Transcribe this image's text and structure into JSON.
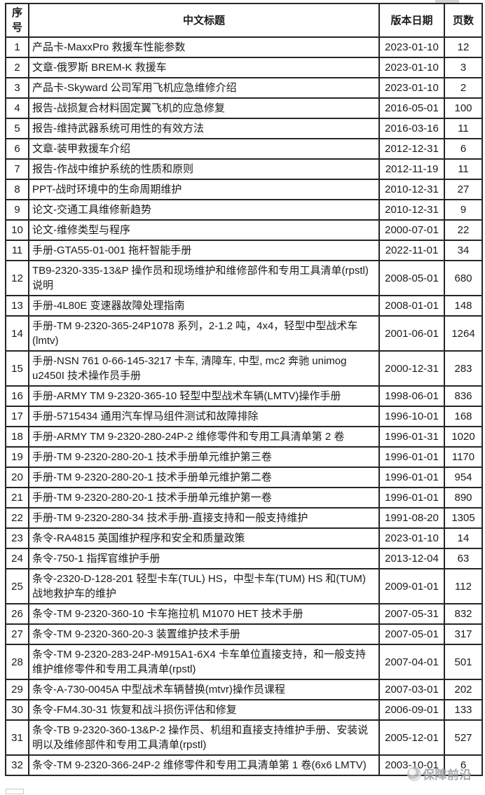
{
  "table": {
    "columns": [
      {
        "key": "seq",
        "label": "序号"
      },
      {
        "key": "title",
        "label": "中文标题"
      },
      {
        "key": "date",
        "label": "版本日期"
      },
      {
        "key": "pages",
        "label": "页数"
      }
    ],
    "rows": [
      {
        "seq": "1",
        "title": "产品卡-MaxxPro 救援车性能参数",
        "date": "2023-01-10",
        "pages": "12"
      },
      {
        "seq": "2",
        "title": "文章-俄罗斯 BREM-K 救援车",
        "date": "2023-01-10",
        "pages": "3"
      },
      {
        "seq": "3",
        "title": "产品卡-Skyward 公司军用飞机应急维修介绍",
        "date": "2023-01-10",
        "pages": "2"
      },
      {
        "seq": "4",
        "title": "报告-战损复合材料固定翼飞机的应急修复",
        "date": "2016-05-01",
        "pages": "100"
      },
      {
        "seq": "5",
        "title": "报告-维持武器系统可用性的有效方法",
        "date": "2016-03-16",
        "pages": "11"
      },
      {
        "seq": "6",
        "title": "文章-装甲救援车介绍",
        "date": "2012-12-31",
        "pages": "6"
      },
      {
        "seq": "7",
        "title": "报告-作战中维护系统的性质和原则",
        "date": "2012-11-19",
        "pages": "11"
      },
      {
        "seq": "8",
        "title": "PPT-战时环境中的生命周期维护",
        "date": "2010-12-31",
        "pages": "27"
      },
      {
        "seq": "9",
        "title": "论文-交通工具维修新趋势",
        "date": "2010-12-31",
        "pages": "9"
      },
      {
        "seq": "10",
        "title": "论文-维修类型与程序",
        "date": "2000-07-01",
        "pages": "22"
      },
      {
        "seq": "11",
        "title": "手册-GTA55-01-001 拖杆智能手册",
        "date": "2022-11-01",
        "pages": "34"
      },
      {
        "seq": "12",
        "title": "TB9-2320-335-13&P 操作员和现场维护和维修部件和专用工具清单(rpstl)说明",
        "date": "2008-05-01",
        "pages": "680"
      },
      {
        "seq": "13",
        "title": "手册-4L80E 变速器故障处理指南",
        "date": "2008-01-01",
        "pages": "148"
      },
      {
        "seq": "14",
        "title": "手册-TM 9-2320-365-24P1078 系列，2-1.2 吨，4x4，轻型中型战术车(lmtv)",
        "date": "2001-06-01",
        "pages": "1264"
      },
      {
        "seq": "15",
        "title": "手册-NSN 761 0-66-145-3217 卡车, 清障车, 中型, mc2 奔驰 unimog u2450I 技术操作员手册",
        "date": "2000-12-31",
        "pages": "283"
      },
      {
        "seq": "16",
        "title": "手册-ARMY TM 9-2320-365-10 轻型中型战术车辆(LMTV)操作手册",
        "date": "1998-06-01",
        "pages": "836"
      },
      {
        "seq": "17",
        "title": "手册-5715434 通用汽车悍马组件测试和故障排除",
        "date": "1996-10-01",
        "pages": "168"
      },
      {
        "seq": "18",
        "title": "手册-ARMY TM 9-2320-280-24P-2 维修零件和专用工具清单第 2 卷",
        "date": "1996-01-31",
        "pages": "1020"
      },
      {
        "seq": "19",
        "title": "手册-TM 9-2320-280-20-1 技术手册单元维护第三卷",
        "date": "1996-01-01",
        "pages": "1170"
      },
      {
        "seq": "20",
        "title": "手册-TM 9-2320-280-20-1 技术手册单元维护第二卷",
        "date": "1996-01-01",
        "pages": "954"
      },
      {
        "seq": "21",
        "title": "手册-TM 9-2320-280-20-1 技术手册单元维护第一卷",
        "date": "1996-01-01",
        "pages": "890"
      },
      {
        "seq": "22",
        "title": "手册-TM 9-2320-280-34 技术手册-直接支持和一般支持维护",
        "date": "1991-08-20",
        "pages": "1305"
      },
      {
        "seq": "23",
        "title": "条令-RA4815 英国维护程序和安全和质量政策",
        "date": "2023-01-10",
        "pages": "14"
      },
      {
        "seq": "24",
        "title": "条令-750-1 指挥官维护手册",
        "date": "2013-12-04",
        "pages": "63"
      },
      {
        "seq": "25",
        "title": "条令-2320-D-128-201 轻型卡车(TUL) HS，中型卡车(TUM) HS 和(TUM)战地救护车的维护",
        "date": "2009-01-01",
        "pages": "112"
      },
      {
        "seq": "26",
        "title": "条令-TM 9-2320-360-10 卡车拖拉机 M1070 HET 技术手册",
        "date": "2007-05-31",
        "pages": "832"
      },
      {
        "seq": "27",
        "title": "条令-TM 9-2320-360-20-3 装置维护技术手册",
        "date": "2007-05-01",
        "pages": "317"
      },
      {
        "seq": "28",
        "title": "条令-TM 9-2320-283-24P-M915A1-6X4 卡车单位直接支持，和一般支持维护维修零件和专用工具清单(rpstl)",
        "date": "2007-04-01",
        "pages": "501"
      },
      {
        "seq": "29",
        "title": "条令-A-730-0045A 中型战术车辆替换(mtvr)操作员课程",
        "date": "2007-03-01",
        "pages": "202"
      },
      {
        "seq": "30",
        "title": "条令-FM4.30-31 恢复和战斗损伤评估和修复",
        "date": "2006-09-01",
        "pages": "133"
      },
      {
        "seq": "31",
        "title": "条令-TB 9-2320-360-13&P-2 操作员、机组和直接支持维护手册、安装说明以及维修部件和专用工具清单(rpstl)",
        "date": "2005-12-01",
        "pages": "527"
      },
      {
        "seq": "32",
        "title": "条令-TM 9-2320-366-24P-2 维修零件和专用工具清单第 1 卷(6x6 LMTV)",
        "date": "2003-10-01",
        "pages": "6"
      }
    ]
  },
  "watermark": {
    "text": "保障前沿",
    "color": "#8f969b"
  },
  "colors": {
    "border": "#262626",
    "text": "#1a1a1a",
    "background": "#ffffff"
  }
}
